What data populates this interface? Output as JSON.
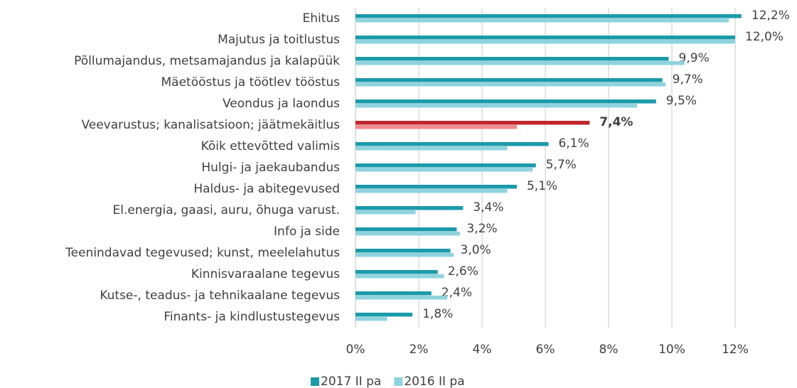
{
  "chart_data": {
    "type": "hbar",
    "categories": [
      "Ehitus",
      "Majutus ja toitlustus",
      "Põllumajandus, metsamajandus ja kalapüük",
      "Mäetööstus ja töötlev tööstus",
      "Veondus ja laondus",
      "Veevarustus; kanalisatsioon; jäätmekäitlus",
      "Kõik ettevõtted valimis",
      "Hulgi- ja jaekaubandus",
      "Haldus- ja abitegevused",
      "El.energia, gaasi, auru, õhuga varust.",
      "Info ja side",
      "Teenindavad tegevused; kunst, meelelahutus",
      "Kinnisvaraalane tegevus",
      "Kutse-, teadus- ja tehnikaalane tegevus",
      "Finants- ja kindlustustegevus"
    ],
    "series": [
      {
        "name": "2017 II pa",
        "color": "#1b9aaa",
        "highlight_color": "#c0272d",
        "values": [
          12.2,
          12.0,
          9.9,
          9.7,
          9.5,
          7.4,
          6.1,
          5.7,
          5.1,
          3.4,
          3.2,
          3.0,
          2.6,
          2.4,
          1.8
        ],
        "value_labels": [
          "12,2%",
          "12,0%",
          "9,9%",
          "9,7%",
          "9,5%",
          "7,4%",
          "6,1%",
          "5,7%",
          "5,1%",
          "3,4%",
          "3,2%",
          "3,0%",
          "2,6%",
          "2,4%",
          "1,8%"
        ]
      },
      {
        "name": "2016 II pa",
        "color": "#8fd3de",
        "highlight_color": "#f08a8f",
        "values": [
          11.8,
          12.0,
          10.4,
          9.8,
          8.9,
          5.1,
          4.8,
          5.6,
          4.8,
          1.9,
          3.3,
          3.1,
          2.8,
          2.9,
          1.0
        ]
      }
    ],
    "highlight_category": "Veevarustus; kanalisatsioon; jäätmekäitlus",
    "xlim": [
      0,
      12
    ],
    "xticks": [
      {
        "value": 0,
        "label": "0%"
      },
      {
        "value": 2,
        "label": "2%"
      },
      {
        "value": 4,
        "label": "4%"
      },
      {
        "value": 6,
        "label": "6%"
      },
      {
        "value": 8,
        "label": "8%"
      },
      {
        "value": 10,
        "label": "10%"
      },
      {
        "value": 12,
        "label": "12%"
      }
    ],
    "grid": true,
    "legend": "bottom"
  }
}
